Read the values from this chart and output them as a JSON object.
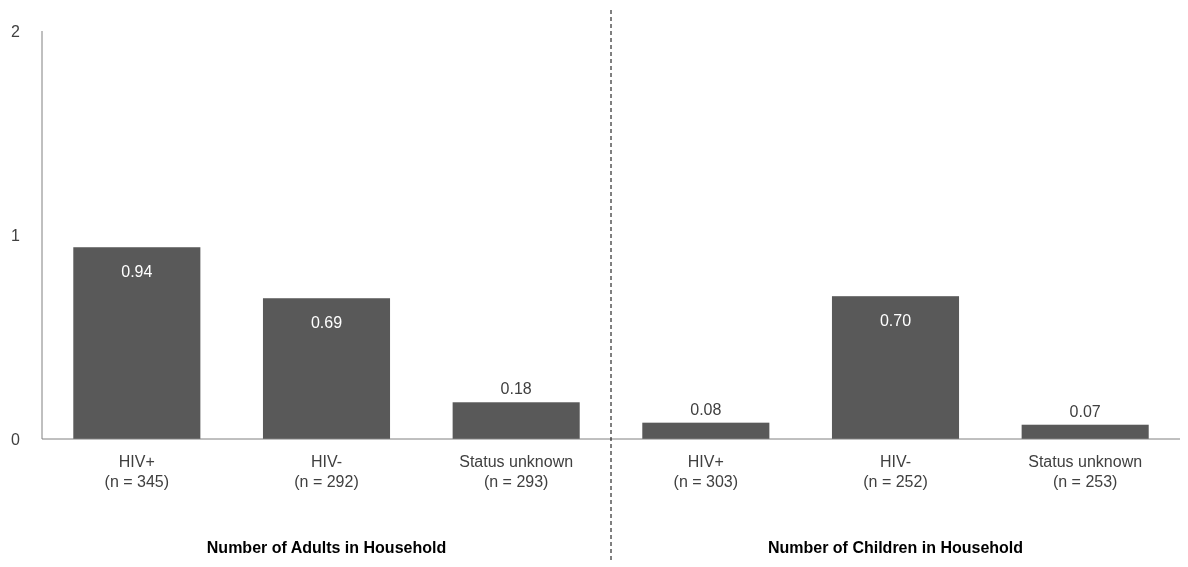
{
  "chart_data": {
    "type": "bar",
    "categories": [
      "HIV+\n(n = 345)",
      "HIV-\n(n = 292)",
      "Status unknown\n(n = 293)",
      "HIV+\n(n = 303)",
      "HIV-\n(n = 252)",
      "Status unknown\n(n = 253)"
    ],
    "values": [
      0.94,
      0.69,
      0.18,
      0.08,
      0.7,
      0.07
    ],
    "value_labels": [
      "0.94",
      "0.69",
      "0.18",
      "0.08",
      "0.70",
      "0.07"
    ],
    "color": "#595959",
    "ylim": [
      0,
      2
    ],
    "yticks": [
      0,
      1,
      2
    ],
    "grid": false,
    "annotations": [
      "Number of Adults in Household",
      "Number of Children in Household"
    ]
  }
}
